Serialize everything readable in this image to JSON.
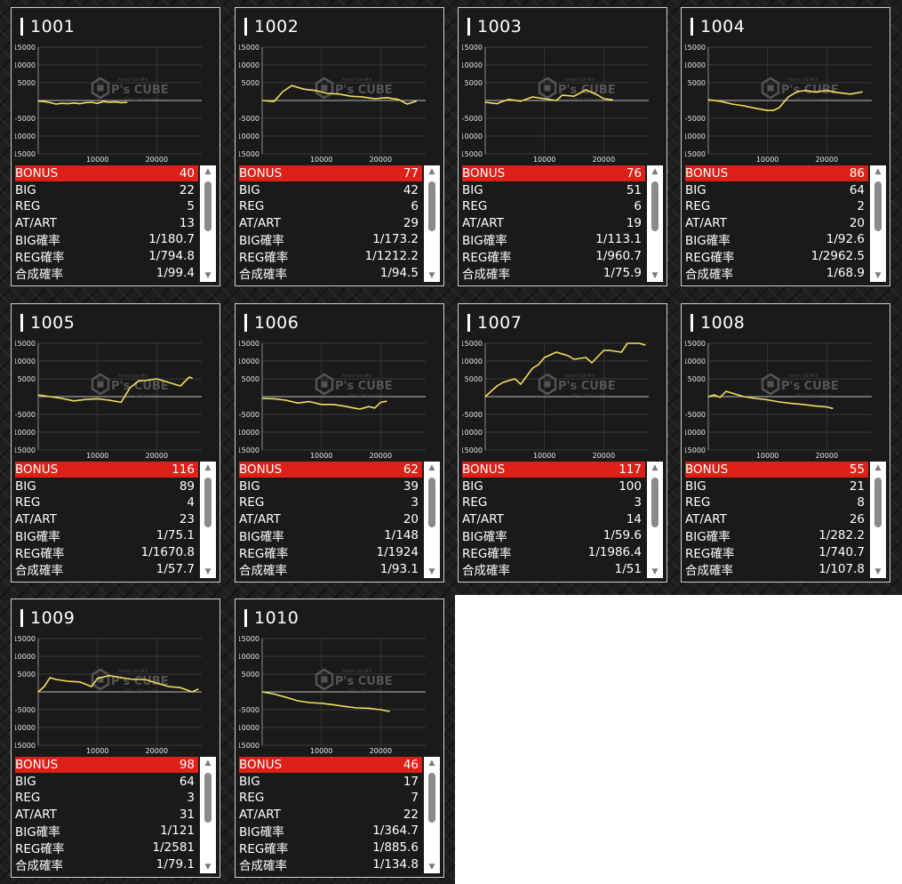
{
  "stat_labels": [
    "BONUS",
    "BIG",
    "REG",
    "AT/ART",
    "BIG確率",
    "REG確率",
    "合成確率"
  ],
  "axis": {
    "y_ticks": [
      "15000",
      "10000",
      "5000",
      "-5000",
      "-10000",
      "-15000"
    ],
    "x_ticks": [
      "10000",
      "20000"
    ]
  },
  "watermark": {
    "brand": "P's CUBE",
    "top_line": "Partner SSS MFR",
    "bottom_line": "パチンコスロットサイト"
  },
  "colors": {
    "line": "#f2df5a",
    "bonus_bg": "#dd2018",
    "card_bg": "#1a1a1a"
  },
  "machines": [
    {
      "id": "1001",
      "stats": [
        "40",
        "22",
        "5",
        "13",
        "1/180.7",
        "1/794.8",
        "1/99.4"
      ]
    },
    {
      "id": "1002",
      "stats": [
        "77",
        "42",
        "6",
        "29",
        "1/173.2",
        "1/1212.2",
        "1/94.5"
      ]
    },
    {
      "id": "1003",
      "stats": [
        "76",
        "51",
        "6",
        "19",
        "1/113.1",
        "1/960.7",
        "1/75.9"
      ]
    },
    {
      "id": "1004",
      "stats": [
        "86",
        "64",
        "2",
        "20",
        "1/92.6",
        "1/2962.5",
        "1/68.9"
      ]
    },
    {
      "id": "1005",
      "stats": [
        "116",
        "89",
        "4",
        "23",
        "1/75.1",
        "1/1670.8",
        "1/57.7"
      ]
    },
    {
      "id": "1006",
      "stats": [
        "62",
        "39",
        "3",
        "20",
        "1/148",
        "1/1924",
        "1/93.1"
      ]
    },
    {
      "id": "1007",
      "stats": [
        "117",
        "100",
        "3",
        "14",
        "1/59.6",
        "1/1986.4",
        "1/51"
      ]
    },
    {
      "id": "1008",
      "stats": [
        "55",
        "21",
        "8",
        "26",
        "1/282.2",
        "1/740.7",
        "1/107.8"
      ]
    },
    {
      "id": "1009",
      "stats": [
        "98",
        "64",
        "3",
        "31",
        "1/121",
        "1/2581",
        "1/79.1"
      ]
    },
    {
      "id": "1010",
      "stats": [
        "46",
        "17",
        "7",
        "22",
        "1/364.7",
        "1/885.6",
        "1/134.8"
      ]
    }
  ],
  "chart_data": [
    {
      "type": "line",
      "title": "1001",
      "xlim": [
        0,
        30000
      ],
      "ylim": [
        -15000,
        15000
      ],
      "x": [
        0,
        1000,
        2000,
        3000,
        4000,
        5000,
        6000,
        7000,
        8000,
        9000,
        10000,
        11000,
        12000,
        13000,
        14000,
        15000
      ],
      "values": [
        -200,
        -300,
        -600,
        -1000,
        -800,
        -900,
        -700,
        -900,
        -600,
        -500,
        -800,
        -300,
        -500,
        -400,
        -600,
        -500
      ]
    },
    {
      "type": "line",
      "title": "1002",
      "xlim": [
        0,
        30000
      ],
      "ylim": [
        -15000,
        15000
      ],
      "x": [
        0,
        2000,
        3500,
        5000,
        7000,
        9000,
        11000,
        13000,
        15000,
        17000,
        19000,
        21000,
        23000,
        24500,
        26000
      ],
      "values": [
        0,
        -300,
        2500,
        4200,
        3200,
        2800,
        2000,
        1800,
        1200,
        1000,
        500,
        800,
        300,
        -1000,
        -200
      ]
    },
    {
      "type": "line",
      "title": "1003",
      "xlim": [
        0,
        30000
      ],
      "ylim": [
        -15000,
        15000
      ],
      "x": [
        0,
        2000,
        3000,
        4000,
        6000,
        8000,
        10000,
        12000,
        13000,
        15000,
        17000,
        19000,
        20000,
        21500
      ],
      "values": [
        -500,
        -900,
        -200,
        300,
        -200,
        1000,
        500,
        0,
        1500,
        1200,
        3000,
        1500,
        500,
        200
      ]
    },
    {
      "type": "line",
      "title": "1004",
      "xlim": [
        0,
        30000
      ],
      "ylim": [
        -15000,
        15000
      ],
      "x": [
        0,
        2000,
        4000,
        6000,
        8000,
        10000,
        11000,
        12000,
        13500,
        15000,
        16500,
        18000,
        20000,
        22000,
        24000,
        26000
      ],
      "values": [
        200,
        -200,
        -1000,
        -1500,
        -2200,
        -2800,
        -2800,
        -2000,
        1000,
        2500,
        2800,
        2400,
        2800,
        2200,
        1800,
        2400
      ]
    },
    {
      "type": "line",
      "title": "1005",
      "xlim": [
        0,
        30000
      ],
      "ylim": [
        -15000,
        15000
      ],
      "x": [
        0,
        2000,
        4000,
        6000,
        8000,
        10000,
        12000,
        14000,
        15500,
        17000,
        18000,
        20000,
        22000,
        24000,
        25500,
        26000
      ],
      "values": [
        500,
        0,
        -500,
        -1200,
        -800,
        -600,
        -1000,
        -1600,
        2500,
        4500,
        4500,
        5000,
        4000,
        3000,
        5500,
        5200
      ]
    },
    {
      "type": "line",
      "title": "1006",
      "xlim": [
        0,
        30000
      ],
      "ylim": [
        -15000,
        15000
      ],
      "x": [
        0,
        2000,
        4000,
        6000,
        8000,
        10000,
        12000,
        14000,
        15500,
        16500,
        18000,
        19000,
        20000,
        21000
      ],
      "values": [
        -500,
        -600,
        -1000,
        -1800,
        -1400,
        -2200,
        -2200,
        -2700,
        -3200,
        -3500,
        -2800,
        -3200,
        -1600,
        -1300
      ]
    },
    {
      "type": "line",
      "title": "1007",
      "xlim": [
        0,
        30000
      ],
      "ylim": [
        -15000,
        15000
      ],
      "x": [
        0,
        2000,
        3000,
        5000,
        6000,
        8000,
        9000,
        10000,
        12000,
        14000,
        15000,
        17000,
        18000,
        20000,
        21000,
        23000,
        24000,
        26000,
        27000
      ],
      "values": [
        0,
        3000,
        4000,
        5000,
        3500,
        8000,
        9000,
        11000,
        12500,
        11500,
        10500,
        11000,
        9500,
        13000,
        13000,
        12500,
        15000,
        15000,
        14500
      ]
    },
    {
      "type": "line",
      "title": "1008",
      "xlim": [
        0,
        30000
      ],
      "ylim": [
        -15000,
        15000
      ],
      "x": [
        0,
        1000,
        2000,
        3000,
        4000,
        6000,
        8000,
        10000,
        12000,
        14000,
        16000,
        18000,
        20000,
        21000
      ],
      "values": [
        0,
        500,
        -200,
        1500,
        1000,
        0,
        -500,
        -900,
        -1500,
        -1900,
        -2200,
        -2600,
        -2900,
        -3300
      ]
    },
    {
      "type": "line",
      "title": "1009",
      "xlim": [
        0,
        30000
      ],
      "ylim": [
        -15000,
        15000
      ],
      "x": [
        0,
        1000,
        2000,
        3000,
        5000,
        7000,
        9000,
        10000,
        12000,
        14000,
        16000,
        18000,
        20000,
        22000,
        24000,
        26000,
        27000
      ],
      "values": [
        0,
        1500,
        4000,
        3500,
        3000,
        2800,
        1500,
        3800,
        4600,
        4000,
        3500,
        3500,
        2500,
        1500,
        1200,
        0,
        800
      ]
    },
    {
      "type": "line",
      "title": "1010",
      "xlim": [
        0,
        30000
      ],
      "ylim": [
        -15000,
        15000
      ],
      "x": [
        0,
        2000,
        4000,
        6000,
        8000,
        10000,
        12000,
        14000,
        16000,
        18000,
        20000,
        21500
      ],
      "values": [
        0,
        -600,
        -1500,
        -2500,
        -3000,
        -3200,
        -3600,
        -4100,
        -4500,
        -4600,
        -5000,
        -5500
      ]
    }
  ]
}
